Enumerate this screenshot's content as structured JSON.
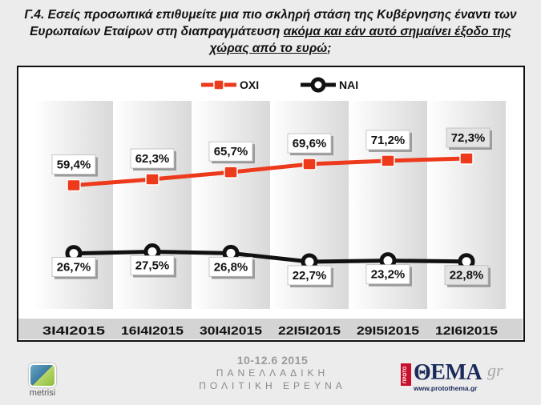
{
  "title": {
    "line1": "Γ.4. Εσείς προσωπικά επιθυμείτε μια πιο σκληρή στάση της Κυβέρνησης έναντι των",
    "line2_pre": "Ευρωπαίων Εταίρων στη διαπραγμάτευση ",
    "line2_underlined": "ακόμα και εάν αυτό σημαίνει έξοδο της",
    "line3_underlined": "χώρας από το ευρώ",
    "line3_post": ";"
  },
  "chart_data": {
    "type": "line",
    "categories": [
      "3I4I2015",
      "16I4I2015",
      "30I4I2015",
      "22I5I2015",
      "29I5I2015",
      "12I6I2015"
    ],
    "series": [
      {
        "name": "ΟΧΙ",
        "color": "#ee3a1c",
        "values": [
          59.4,
          62.3,
          65.7,
          69.6,
          71.2,
          72.3
        ],
        "labels": [
          "59,4%",
          "62,3%",
          "65,7%",
          "69,6%",
          "71,2%",
          "72,3%"
        ]
      },
      {
        "name": "ΝΑΙ",
        "color": "#111111",
        "values": [
          26.7,
          27.5,
          26.8,
          22.7,
          23.2,
          22.8
        ],
        "labels": [
          "26,7%",
          "27,5%",
          "26,8%",
          "22,7%",
          "23,2%",
          "22,8%"
        ]
      }
    ],
    "ylim": [
      0,
      100
    ],
    "legend": "top",
    "grid": "vertical bands"
  },
  "footer": {
    "date": "10-12.6 2015",
    "line1": "ΠΑΝΕΛΛΑΔΙΚΗ",
    "line2": "ΠΟΛΙΤΙΚΗ ΕΡΕΥΝΑ"
  },
  "logos": {
    "left_text": "metrisi",
    "right_badge": "ΠΡΩΤΟ",
    "right_brand": "ΘΕΜΑ",
    "right_suffix": "gr",
    "right_url": "www.protothema.gr"
  }
}
